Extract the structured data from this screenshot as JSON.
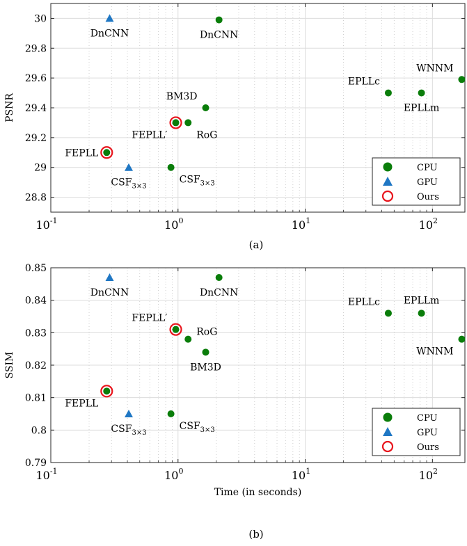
{
  "chart_data": [
    {
      "type": "scatter",
      "panel_label": "(a)",
      "ylabel": "PSNR",
      "xlabel": "",
      "xscale": "log",
      "xlim": [
        0.1,
        180
      ],
      "ylim": [
        28.7,
        30.1
      ],
      "xticks": [
        {
          "base": "10",
          "exp": "-1"
        },
        {
          "base": "10",
          "exp": "0"
        },
        {
          "base": "10",
          "exp": "1"
        },
        {
          "base": "10",
          "exp": "2"
        }
      ],
      "yticks": [
        "28.8",
        "29",
        "29.2",
        "29.4",
        "29.6",
        "29.8",
        "30"
      ],
      "grid": true,
      "legend_position": "bottom-right",
      "legend": [
        {
          "label": "CPU",
          "marker": "circle",
          "color": "#0a7d0a"
        },
        {
          "label": "GPU",
          "marker": "triangle",
          "color": "#1f77c4"
        },
        {
          "label": "Ours",
          "marker": "ring",
          "color": "#e8141c"
        }
      ],
      "points": [
        {
          "x": 0.29,
          "y": 30.0,
          "group": "GPU",
          "ours": false,
          "label": "DnCNN",
          "sub": "",
          "labelPos": "below"
        },
        {
          "x": 2.1,
          "y": 29.99,
          "group": "CPU",
          "ours": false,
          "label": "DnCNN",
          "sub": "",
          "labelPos": "below"
        },
        {
          "x": 1.65,
          "y": 29.4,
          "group": "CPU",
          "ours": false,
          "label": "BM3D",
          "sub": "",
          "labelPos": "above-left"
        },
        {
          "x": 1.2,
          "y": 29.3,
          "group": "CPU",
          "ours": false,
          "label": "RoG",
          "sub": "",
          "labelPos": "below-right"
        },
        {
          "x": 0.96,
          "y": 29.3,
          "group": "CPU",
          "ours": true,
          "label": "FEPLL′",
          "sub": "",
          "labelPos": "below-left"
        },
        {
          "x": 0.275,
          "y": 29.1,
          "group": "CPU",
          "ours": true,
          "label": "FEPLL",
          "sub": "",
          "labelPos": "left"
        },
        {
          "x": 0.41,
          "y": 29.0,
          "group": "GPU",
          "ours": false,
          "label": "CSF",
          "sub": "3×3",
          "labelPos": "below"
        },
        {
          "x": 0.88,
          "y": 29.0,
          "group": "CPU",
          "ours": false,
          "label": "CSF",
          "sub": "3×3",
          "labelPos": "below-right"
        },
        {
          "x": 45,
          "y": 29.5,
          "group": "CPU",
          "ours": false,
          "label": "EPLLc",
          "sub": "",
          "labelPos": "above-left"
        },
        {
          "x": 82,
          "y": 29.5,
          "group": "CPU",
          "ours": false,
          "label": "EPLLm",
          "sub": "",
          "labelPos": "below"
        },
        {
          "x": 170,
          "y": 29.59,
          "group": "CPU",
          "ours": false,
          "label": "WNNM",
          "sub": "",
          "labelPos": "above-left"
        }
      ]
    },
    {
      "type": "scatter",
      "panel_label": "(b)",
      "ylabel": "SSIM",
      "xlabel": "Time (in seconds)",
      "xscale": "log",
      "xlim": [
        0.1,
        180
      ],
      "ylim": [
        0.79,
        0.85
      ],
      "xticks": [
        {
          "base": "10",
          "exp": "-1"
        },
        {
          "base": "10",
          "exp": "0"
        },
        {
          "base": "10",
          "exp": "1"
        },
        {
          "base": "10",
          "exp": "2"
        }
      ],
      "yticks": [
        "0.79",
        "0.8",
        "0.81",
        "0.82",
        "0.83",
        "0.84",
        "0.85"
      ],
      "grid": true,
      "legend_position": "bottom-right",
      "legend": [
        {
          "label": "CPU",
          "marker": "circle",
          "color": "#0a7d0a"
        },
        {
          "label": "GPU",
          "marker": "triangle",
          "color": "#1f77c4"
        },
        {
          "label": "Ours",
          "marker": "ring",
          "color": "#e8141c"
        }
      ],
      "points": [
        {
          "x": 0.29,
          "y": 0.847,
          "group": "GPU",
          "ours": false,
          "label": "DnCNN",
          "sub": "",
          "labelPos": "below"
        },
        {
          "x": 2.1,
          "y": 0.847,
          "group": "CPU",
          "ours": false,
          "label": "DnCNN",
          "sub": "",
          "labelPos": "below"
        },
        {
          "x": 0.96,
          "y": 0.831,
          "group": "CPU",
          "ours": true,
          "label": "FEPLL′",
          "sub": "",
          "labelPos": "above-left"
        },
        {
          "x": 1.2,
          "y": 0.828,
          "group": "CPU",
          "ours": false,
          "label": "RoG",
          "sub": "",
          "labelPos": "above-right"
        },
        {
          "x": 1.65,
          "y": 0.824,
          "group": "CPU",
          "ours": false,
          "label": "BM3D",
          "sub": "",
          "labelPos": "below"
        },
        {
          "x": 0.275,
          "y": 0.812,
          "group": "CPU",
          "ours": true,
          "label": "FEPLL",
          "sub": "",
          "labelPos": "below-left"
        },
        {
          "x": 0.41,
          "y": 0.805,
          "group": "GPU",
          "ours": false,
          "label": "CSF",
          "sub": "3×3",
          "labelPos": "below"
        },
        {
          "x": 0.88,
          "y": 0.805,
          "group": "CPU",
          "ours": false,
          "label": "CSF",
          "sub": "3×3",
          "labelPos": "below-right"
        },
        {
          "x": 45,
          "y": 0.836,
          "group": "CPU",
          "ours": false,
          "label": "EPLLc",
          "sub": "",
          "labelPos": "above-left"
        },
        {
          "x": 82,
          "y": 0.836,
          "group": "CPU",
          "ours": false,
          "label": "EPLLm",
          "sub": "",
          "labelPos": "above"
        },
        {
          "x": 170,
          "y": 0.828,
          "group": "CPU",
          "ours": false,
          "label": "WNNM",
          "sub": "",
          "labelPos": "below-left"
        }
      ]
    }
  ]
}
